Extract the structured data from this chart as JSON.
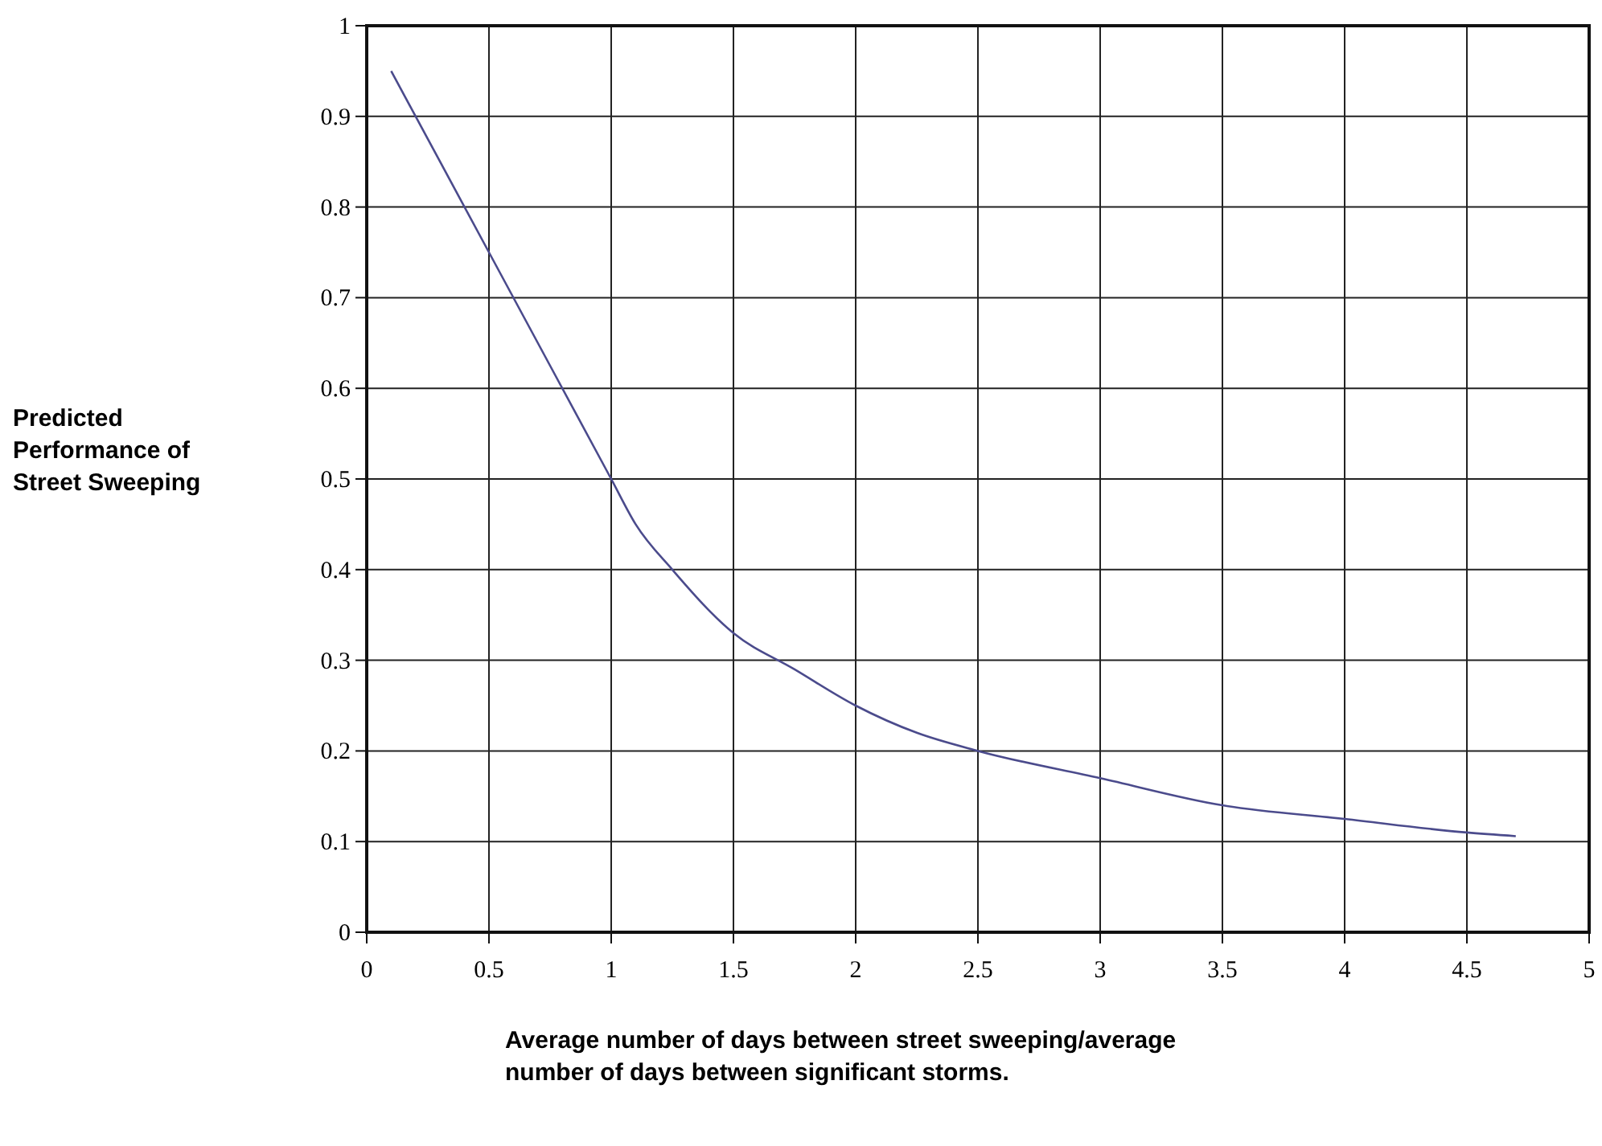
{
  "chart_data": {
    "type": "line",
    "xlabel": "Average number of days between street sweeping/average\nnumber of days between significant storms.",
    "ylabel": "Predicted\nPerformance of\nStreet Sweeping",
    "series": [
      {
        "color": "#4b4b8c",
        "x": [
          0.1,
          0.5,
          1,
          1.1,
          1.25,
          1.5,
          1.75,
          2,
          2.25,
          2.5,
          3,
          3.5,
          4,
          4.5,
          4.7
        ],
        "values": [
          0.95,
          0.75,
          0.5,
          0.45,
          0.4,
          0.33,
          0.29,
          0.25,
          0.22,
          0.2,
          0.17,
          0.14,
          0.125,
          0.11,
          0.106
        ]
      }
    ],
    "xlim": [
      0,
      5
    ],
    "xticks": [
      0,
      0.5,
      1,
      1.5,
      2,
      2.5,
      3,
      3.5,
      4,
      4.5,
      5
    ],
    "ylim": [
      0,
      1
    ],
    "yticks": [
      0,
      0.1,
      0.2,
      0.3,
      0.4,
      0.5,
      0.6,
      0.7,
      0.8,
      0.9,
      1
    ],
    "grid": true,
    "marker": "none",
    "line_style": "solid"
  }
}
